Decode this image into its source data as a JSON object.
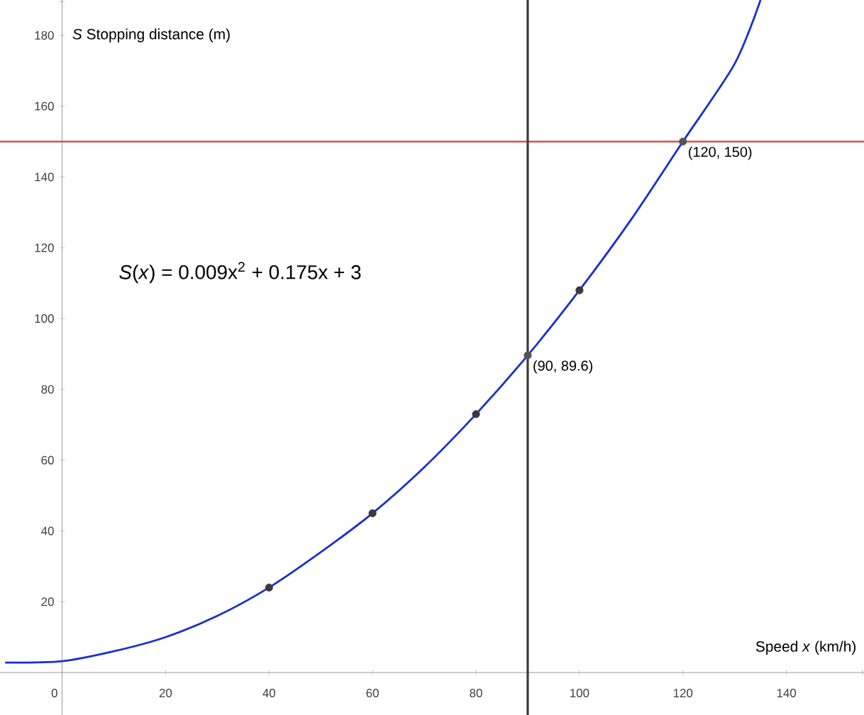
{
  "chart_data": {
    "type": "line",
    "xlabel": "Speed *x* (km/h)",
    "ylabel": "*S*   Stopping distance (m)",
    "xlim": [
      -12,
      155
    ],
    "ylim": [
      -12,
      190
    ],
    "xticks": [
      0,
      20,
      40,
      60,
      80,
      100,
      120,
      140
    ],
    "yticks": [
      20,
      40,
      60,
      80,
      100,
      120,
      140,
      160,
      180
    ],
    "grid": false,
    "series": [
      {
        "color": "#1a2ed0",
        "marker": "none",
        "x": [
          -11,
          0,
          10,
          20,
          30,
          40,
          50,
          60,
          70,
          80,
          90,
          100,
          110,
          120,
          130,
          135
        ],
        "values": [
          2.8,
          3.2,
          6,
          10,
          16,
          24,
          34,
          45,
          58,
          73,
          89.6,
          108,
          128,
          150,
          172,
          190
        ]
      },
      {
        "type": "scatter",
        "color": "#3a3a3a",
        "marker": "circle",
        "x": [
          40,
          60,
          80,
          100
        ],
        "values": [
          24,
          45,
          73,
          108
        ]
      },
      {
        "type": "scatter",
        "color": "#555555",
        "marker": "circle",
        "x": [
          90,
          120
        ],
        "values": [
          89.6,
          150
        ]
      }
    ],
    "ref_lines": [
      {
        "axis": "y",
        "value": 150,
        "color": "#e03a3a"
      },
      {
        "axis": "x",
        "value": 90,
        "color": "#3a3a3a"
      }
    ],
    "annotations": [
      "*S*(*x*) = 0.009x$^{2}$ + 0.175x + 3",
      {
        "text": "(90, 89.6)",
        "x": 90,
        "y": 89.6
      },
      {
        "text": "(120, 150)",
        "x": 120,
        "y": 150
      }
    ]
  }
}
